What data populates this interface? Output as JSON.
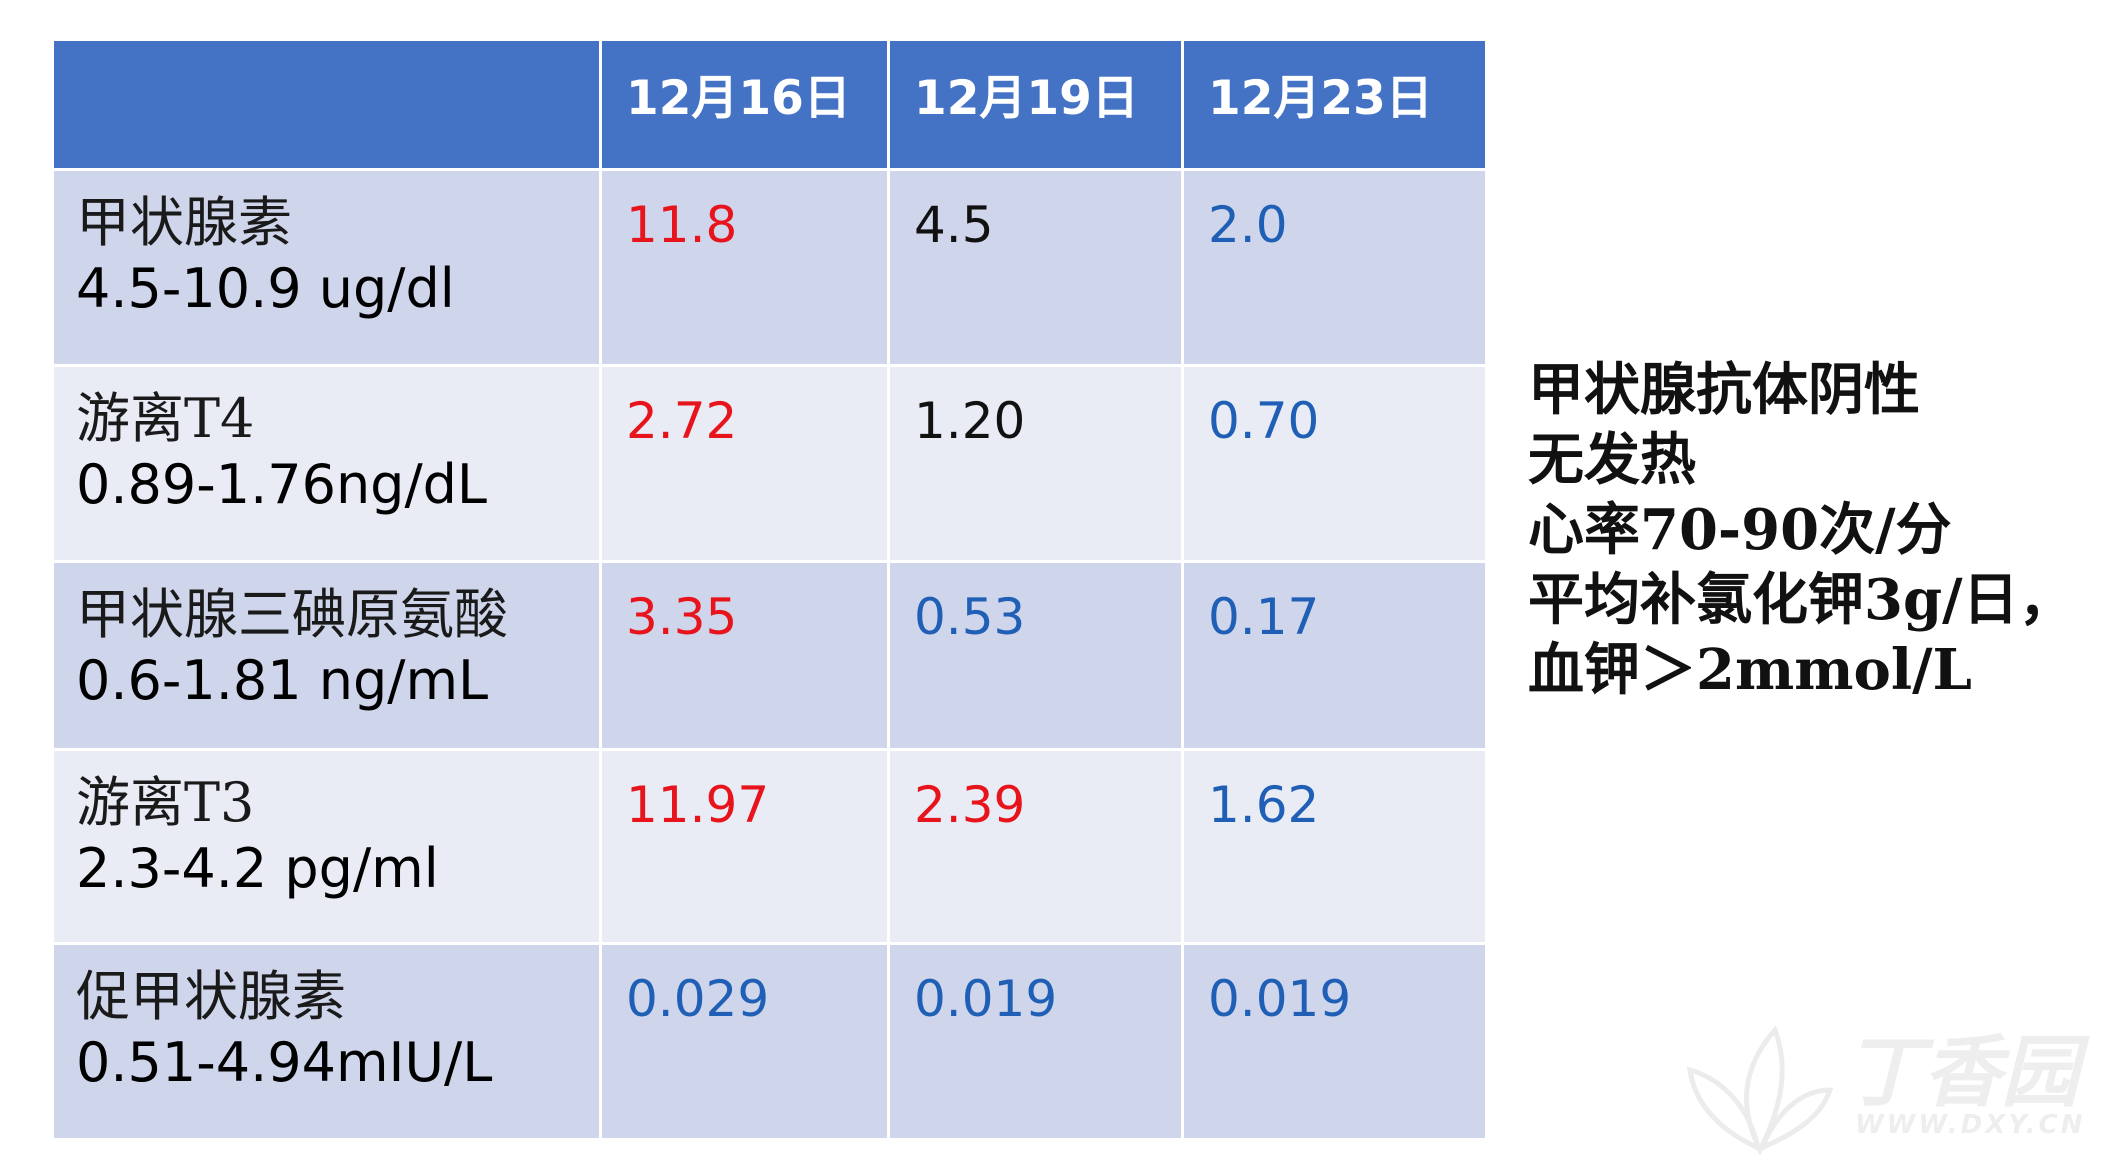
{
  "table": {
    "headers": [
      "",
      "12月16日",
      "12月19日",
      "12月23日"
    ],
    "rows": [
      {
        "name": "甲状腺素",
        "range": "4.5-10.9 ug/dl",
        "values": [
          {
            "text": "11.8",
            "color": "#e8141c"
          },
          {
            "text": "4.5",
            "color": "#111111"
          },
          {
            "text": "2.0",
            "color": "#1f5fb5"
          }
        ]
      },
      {
        "name": "游离T4",
        "range": "0.89-1.76ng/dL",
        "values": [
          {
            "text": "2.72",
            "color": "#e8141c"
          },
          {
            "text": "1.20",
            "color": "#111111"
          },
          {
            "text": "0.70",
            "color": "#1f5fb5"
          }
        ]
      },
      {
        "name": "甲状腺三碘原氨酸",
        "range": "0.6-1.81 ng/mL",
        "values": [
          {
            "text": "3.35",
            "color": "#e8141c"
          },
          {
            "text": "0.53",
            "color": "#1f5fb5"
          },
          {
            "text": "0.17",
            "color": "#1f5fb5"
          }
        ]
      },
      {
        "name": "游离T3",
        "range": "2.3-4.2 pg/ml",
        "values": [
          {
            "text": "11.97",
            "color": "#e8141c"
          },
          {
            "text": "2.39",
            "color": "#e8141c"
          },
          {
            "text": "1.62",
            "color": "#1f5fb5"
          }
        ]
      },
      {
        "name": "促甲状腺素",
        "range": "0.51-4.94mIU/L",
        "values": [
          {
            "text": "0.029",
            "color": "#1f5fb5"
          },
          {
            "text": "0.019",
            "color": "#1f5fb5"
          },
          {
            "text": "0.019",
            "color": "#1f5fb5"
          }
        ]
      }
    ]
  },
  "notes": [
    "甲状腺抗体阴性",
    "无发热",
    "心率70-90次/分",
    "平均补氯化钾3g/日，",
    "血钾＞2mmol/L"
  ],
  "watermark": {
    "name": "丁香园",
    "url": "WWW.DXY.CN"
  },
  "colors": {
    "header_bg": "#4472c4",
    "row_dark": "#cfd5ea",
    "row_light": "#e9ebf5"
  }
}
